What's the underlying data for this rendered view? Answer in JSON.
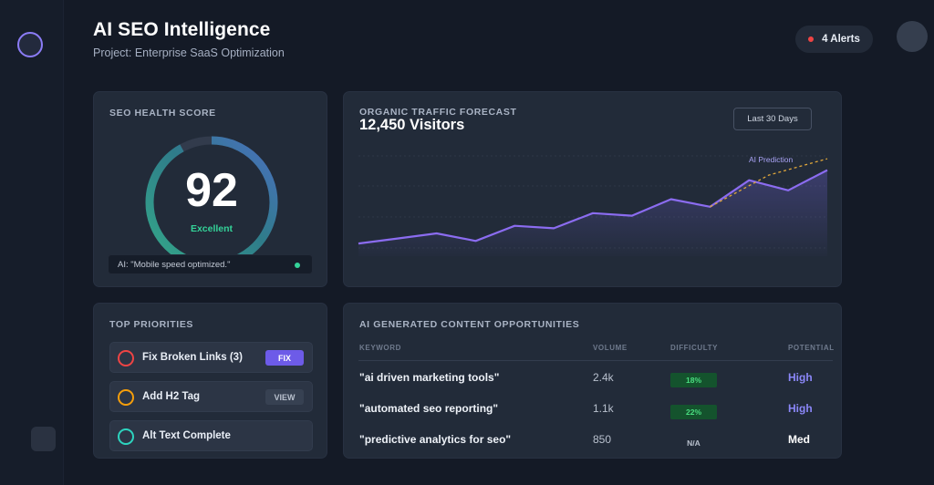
{
  "header": {
    "title": "AI SEO Intelligence",
    "subtitle": "Project: Enterprise SaaS Optimization",
    "alerts_label": "4 Alerts"
  },
  "health": {
    "label": "SEO HEALTH SCORE",
    "score": "92",
    "score_value": 92,
    "status": "Excellent",
    "ai_note": "AI: \"Mobile speed optimized.\""
  },
  "traffic": {
    "label": "ORGANIC TRAFFIC FORECAST",
    "visitors": "12,450 Visitors",
    "range_button": "Last 30 Days",
    "prediction_label": "AI Prediction"
  },
  "chart_data": {
    "type": "line",
    "series": [
      {
        "values": [
          10,
          14,
          18,
          12,
          24,
          22,
          34,
          32,
          45,
          39,
          60,
          52,
          68
        ]
      },
      {
        "name": "AI Prediction",
        "values": [
          39,
          64,
          77
        ],
        "x_start": 9
      }
    ],
    "ylim": [
      0,
      90
    ],
    "grid": true
  },
  "priorities": {
    "label": "TOP PRIORITIES",
    "items": [
      {
        "text": "Fix Broken Links (3)",
        "action": "FIX",
        "ring": "#ef4444"
      },
      {
        "text": "Add H2 Tag",
        "action": "VIEW",
        "ring": "#f59e0b"
      },
      {
        "text": "Alt Text Complete",
        "action": "",
        "ring": "#2dd4bf"
      }
    ]
  },
  "opportunities": {
    "label": "AI GENERATED CONTENT OPPORTUNITIES",
    "columns": [
      "KEYWORD",
      "VOLUME",
      "DIFFICULTY",
      "POTENTIAL"
    ],
    "rows": [
      {
        "keyword": "\"ai driven marketing tools\"",
        "volume": "2.4k",
        "difficulty": "18%",
        "potential": "High"
      },
      {
        "keyword": "\"automated seo reporting\"",
        "volume": "1.1k",
        "difficulty": "22%",
        "potential": "High"
      },
      {
        "keyword": "\"predictive analytics for seo\"",
        "volume": "850",
        "difficulty": "N/A",
        "potential": "Med"
      }
    ]
  },
  "colors": {
    "accent": "#8b7cf6",
    "success": "#34d399",
    "prediction": "#e0a73a",
    "high": "#8b87f8"
  }
}
